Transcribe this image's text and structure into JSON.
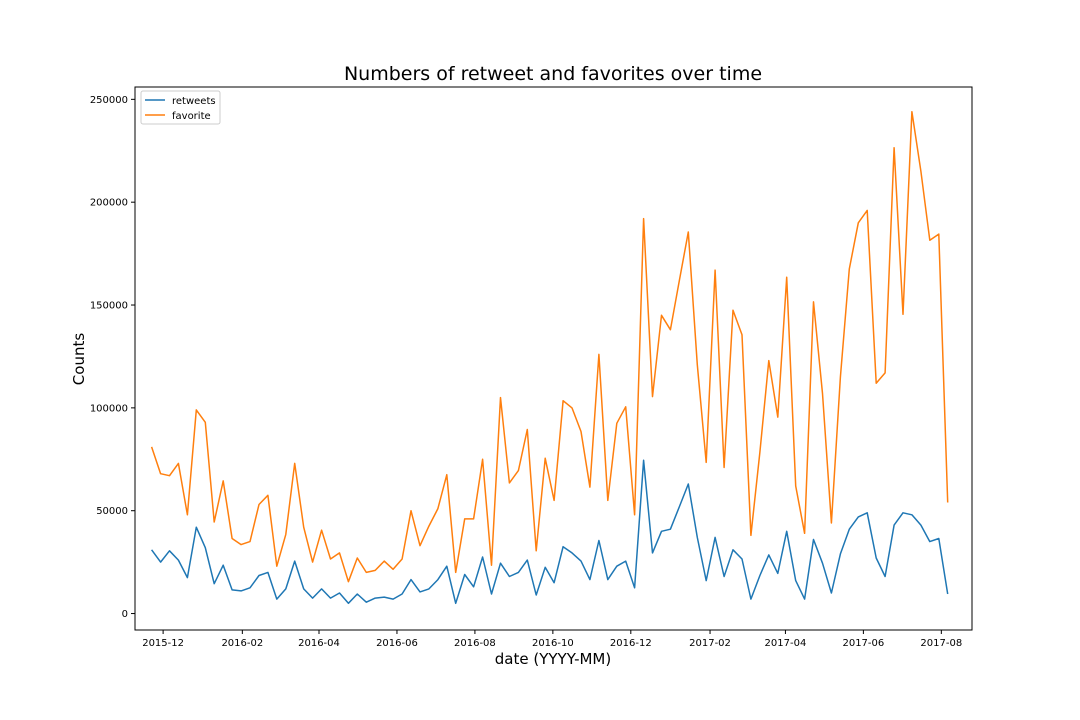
{
  "chart_data": {
    "type": "line",
    "title": "Numbers of retweet and favorites over time",
    "xlabel": "date (YYYY-MM)",
    "ylabel": "Counts",
    "x_tick_labels": [
      "2015-12",
      "2016-02",
      "2016-04",
      "2016-06",
      "2016-08",
      "2016-10",
      "2016-12",
      "2017-02",
      "2017-04",
      "2017-06",
      "2017-08"
    ],
    "y_tick_labels": [
      "0",
      "50000",
      "100000",
      "150000",
      "200000",
      "250000"
    ],
    "y_ticks": [
      0,
      50000,
      100000,
      150000,
      200000,
      250000
    ],
    "ylim": [
      -8000,
      256000
    ],
    "xlim": [
      "2015-11-09",
      "2017-08-25"
    ],
    "grid": false,
    "legend_position": "top-left",
    "dates": [
      "2015-11-22",
      "2015-11-29",
      "2015-12-06",
      "2015-12-13",
      "2015-12-20",
      "2015-12-27",
      "2016-01-03",
      "2016-01-10",
      "2016-01-17",
      "2016-01-24",
      "2016-01-31",
      "2016-02-07",
      "2016-02-14",
      "2016-02-21",
      "2016-02-28",
      "2016-03-06",
      "2016-03-13",
      "2016-03-20",
      "2016-03-27",
      "2016-04-03",
      "2016-04-10",
      "2016-04-17",
      "2016-04-24",
      "2016-05-01",
      "2016-05-08",
      "2016-05-15",
      "2016-05-22",
      "2016-05-29",
      "2016-06-05",
      "2016-06-12",
      "2016-06-19",
      "2016-06-26",
      "2016-07-03",
      "2016-07-10",
      "2016-07-17",
      "2016-07-24",
      "2016-07-31",
      "2016-08-07",
      "2016-08-14",
      "2016-08-21",
      "2016-08-28",
      "2016-09-04",
      "2016-09-11",
      "2016-09-18",
      "2016-09-25",
      "2016-10-02",
      "2016-10-09",
      "2016-10-16",
      "2016-10-23",
      "2016-10-30",
      "2016-11-06",
      "2016-11-13",
      "2016-11-20",
      "2016-11-27",
      "2016-12-04",
      "2016-12-11",
      "2016-12-18",
      "2016-12-25",
      "2017-01-01",
      "2017-01-08",
      "2017-01-15",
      "2017-01-22",
      "2017-01-29",
      "2017-02-05",
      "2017-02-12",
      "2017-02-19",
      "2017-02-26",
      "2017-03-05",
      "2017-03-12",
      "2017-03-19",
      "2017-03-26",
      "2017-04-02",
      "2017-04-09",
      "2017-04-16",
      "2017-04-23",
      "2017-04-30",
      "2017-05-07",
      "2017-05-14",
      "2017-05-21",
      "2017-05-28",
      "2017-06-04",
      "2017-06-11",
      "2017-06-18",
      "2017-06-25",
      "2017-07-02",
      "2017-07-09",
      "2017-07-16",
      "2017-07-23",
      "2017-07-30",
      "2017-08-06"
    ],
    "series": [
      {
        "name": "retweets",
        "color": "#1f77b4",
        "values": [
          31000,
          25000,
          30500,
          26000,
          17500,
          42000,
          32000,
          14500,
          23500,
          11500,
          11000,
          12500,
          18500,
          20000,
          7000,
          12000,
          25500,
          12000,
          7500,
          12000,
          7500,
          10000,
          5000,
          9500,
          5500,
          7500,
          8000,
          7000,
          9500,
          16500,
          10500,
          12000,
          16500,
          23000,
          5000,
          19000,
          13000,
          27500,
          9500,
          24500,
          18000,
          20000,
          26000,
          9000,
          22500,
          15000,
          32500,
          29500,
          25500,
          16500,
          35500,
          16500,
          23000,
          25500,
          12500,
          74500,
          29500,
          40000,
          41000,
          52000,
          63000,
          37000,
          16000,
          37000,
          18000,
          31000,
          26500,
          7000,
          18500,
          28500,
          19500,
          40000,
          16000,
          7000,
          36000,
          24500,
          10000,
          29000,
          41000,
          47000,
          49000,
          27000,
          18000,
          43000,
          49000,
          48000,
          43000,
          35000,
          36500,
          9500
        ]
      },
      {
        "name": "favorite",
        "color": "#ff7f0e",
        "values": [
          81000,
          68000,
          67000,
          73000,
          48000,
          99000,
          93000,
          44500,
          64500,
          36500,
          33500,
          35000,
          53000,
          57500,
          23000,
          38500,
          73000,
          42000,
          25000,
          40500,
          26500,
          29500,
          15500,
          27000,
          20000,
          21000,
          25500,
          21500,
          26500,
          50000,
          33000,
          42500,
          51000,
          67500,
          20000,
          46000,
          46000,
          75000,
          23500,
          105000,
          63500,
          69500,
          89500,
          30500,
          75500,
          55000,
          103500,
          100000,
          88500,
          61500,
          126000,
          55000,
          92500,
          100500,
          48000,
          192000,
          105500,
          145000,
          138000,
          162000,
          185500,
          121000,
          73500,
          167000,
          71000,
          147500,
          135500,
          38000,
          78500,
          123000,
          95500,
          163500,
          62000,
          39000,
          151500,
          107000,
          44000,
          115000,
          167500,
          190000,
          196000,
          112000,
          117000,
          226500,
          145500,
          244000,
          215000,
          181500,
          184500,
          54000
        ]
      }
    ]
  }
}
